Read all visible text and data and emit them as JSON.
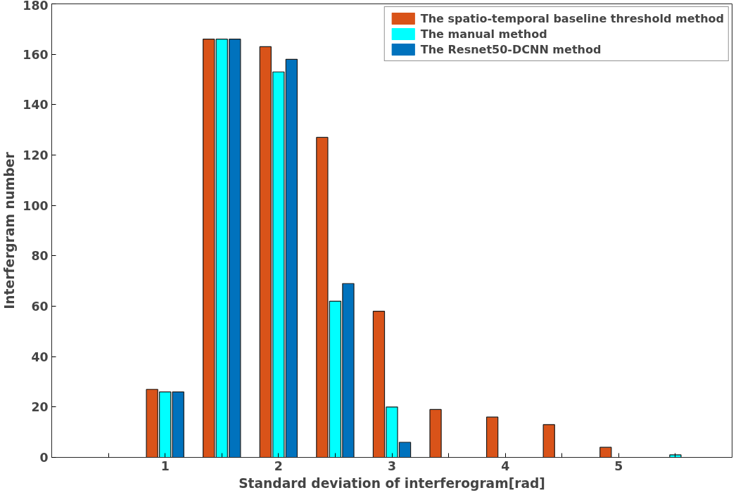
{
  "chart_data": {
    "type": "bar",
    "xlabel": "Standard deviation of interferogram[rad]",
    "ylabel": "Interfergram number",
    "x": [
      0.5,
      1,
      1.5,
      2,
      2.5,
      3,
      3.5,
      4,
      4.5,
      5,
      5.5
    ],
    "series": [
      {
        "name": "The spatio-temporal baseline threshold method",
        "color": "#d95319",
        "values": [
          0,
          27,
          166,
          163,
          127,
          58,
          19,
          16,
          13,
          4,
          0
        ]
      },
      {
        "name": "The manual method",
        "color": "#00ffff",
        "values": [
          0,
          26,
          166,
          153,
          62,
          20,
          0,
          0,
          0,
          0,
          1
        ]
      },
      {
        "name": "The Resnet50-DCNN method",
        "color": "#0072bd",
        "values": [
          0,
          26,
          166,
          158,
          69,
          6,
          0,
          0,
          0,
          0,
          0
        ]
      }
    ],
    "xlim": [
      0,
      6
    ],
    "ylim": [
      0,
      180
    ],
    "xticks": [
      {
        "value": 0.5,
        "label": null
      },
      1,
      {
        "value": 1.5,
        "label": null
      },
      2,
      {
        "value": 2.5,
        "label": null
      },
      3,
      {
        "value": 3.5,
        "label": null
      },
      4,
      {
        "value": 4.5,
        "label": null
      },
      5,
      {
        "value": 5.5,
        "label": null
      }
    ],
    "yticks": [
      0,
      20,
      40,
      60,
      80,
      100,
      120,
      140,
      160,
      180
    ],
    "grid": false,
    "legend": "top right"
  }
}
